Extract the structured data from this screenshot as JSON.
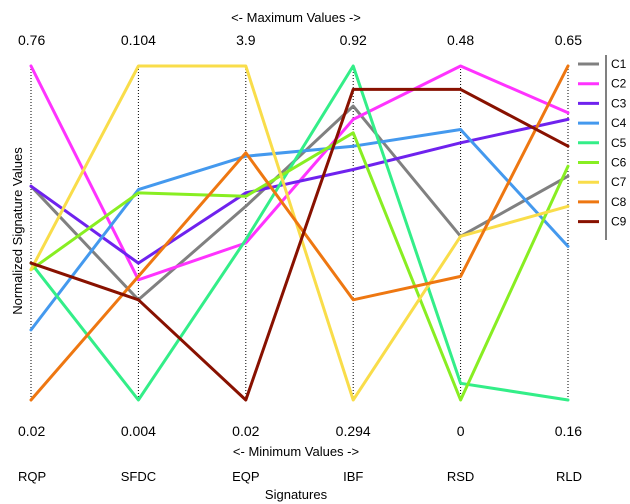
{
  "chart_data": {
    "type": "line",
    "title_top": "<- Maximum Values ->",
    "title_bottom": "<- Minimum Values ->",
    "xlabel": "Signatures",
    "ylabel": "Normalized Signature Values",
    "axes": [
      "RQP",
      "SFDC",
      "EQP",
      "IBF",
      "RSD",
      "RLD"
    ],
    "max_values": [
      "0.76",
      "0.104",
      "3.9",
      "0.92",
      "0.48",
      "0.65"
    ],
    "min_values": [
      "0.02",
      "0.004",
      "0.02",
      "0.294",
      "0",
      "0.16"
    ],
    "ylim": [
      0,
      1
    ],
    "legend_position": "right",
    "series": [
      {
        "name": "C1",
        "color": "#808080",
        "values": [
          0.64,
          0.3,
          0.58,
          0.88,
          0.49,
          0.67
        ]
      },
      {
        "name": "C2",
        "color": "#ff33ff",
        "values": [
          1.0,
          0.36,
          0.47,
          0.84,
          1.0,
          0.86
        ]
      },
      {
        "name": "C3",
        "color": "#6f22ee",
        "values": [
          0.64,
          0.41,
          0.62,
          0.69,
          0.77,
          0.84
        ]
      },
      {
        "name": "C4",
        "color": "#4499ee",
        "values": [
          0.21,
          0.63,
          0.73,
          0.76,
          0.81,
          0.46
        ]
      },
      {
        "name": "C5",
        "color": "#33ee88",
        "values": [
          0.41,
          0.0,
          0.48,
          1.0,
          0.05,
          0.0
        ]
      },
      {
        "name": "C6",
        "color": "#88ee22",
        "values": [
          0.39,
          0.62,
          0.61,
          0.8,
          0.0,
          0.7
        ]
      },
      {
        "name": "C7",
        "color": "#f9dd4a",
        "values": [
          0.39,
          1.0,
          1.0,
          0.0,
          0.49,
          0.58
        ]
      },
      {
        "name": "C8",
        "color": "#ee7711",
        "values": [
          0.0,
          0.37,
          0.74,
          0.3,
          0.37,
          1.0
        ]
      },
      {
        "name": "C9",
        "color": "#881100",
        "values": [
          0.41,
          0.3,
          0.0,
          0.93,
          0.93,
          0.76
        ]
      }
    ]
  }
}
